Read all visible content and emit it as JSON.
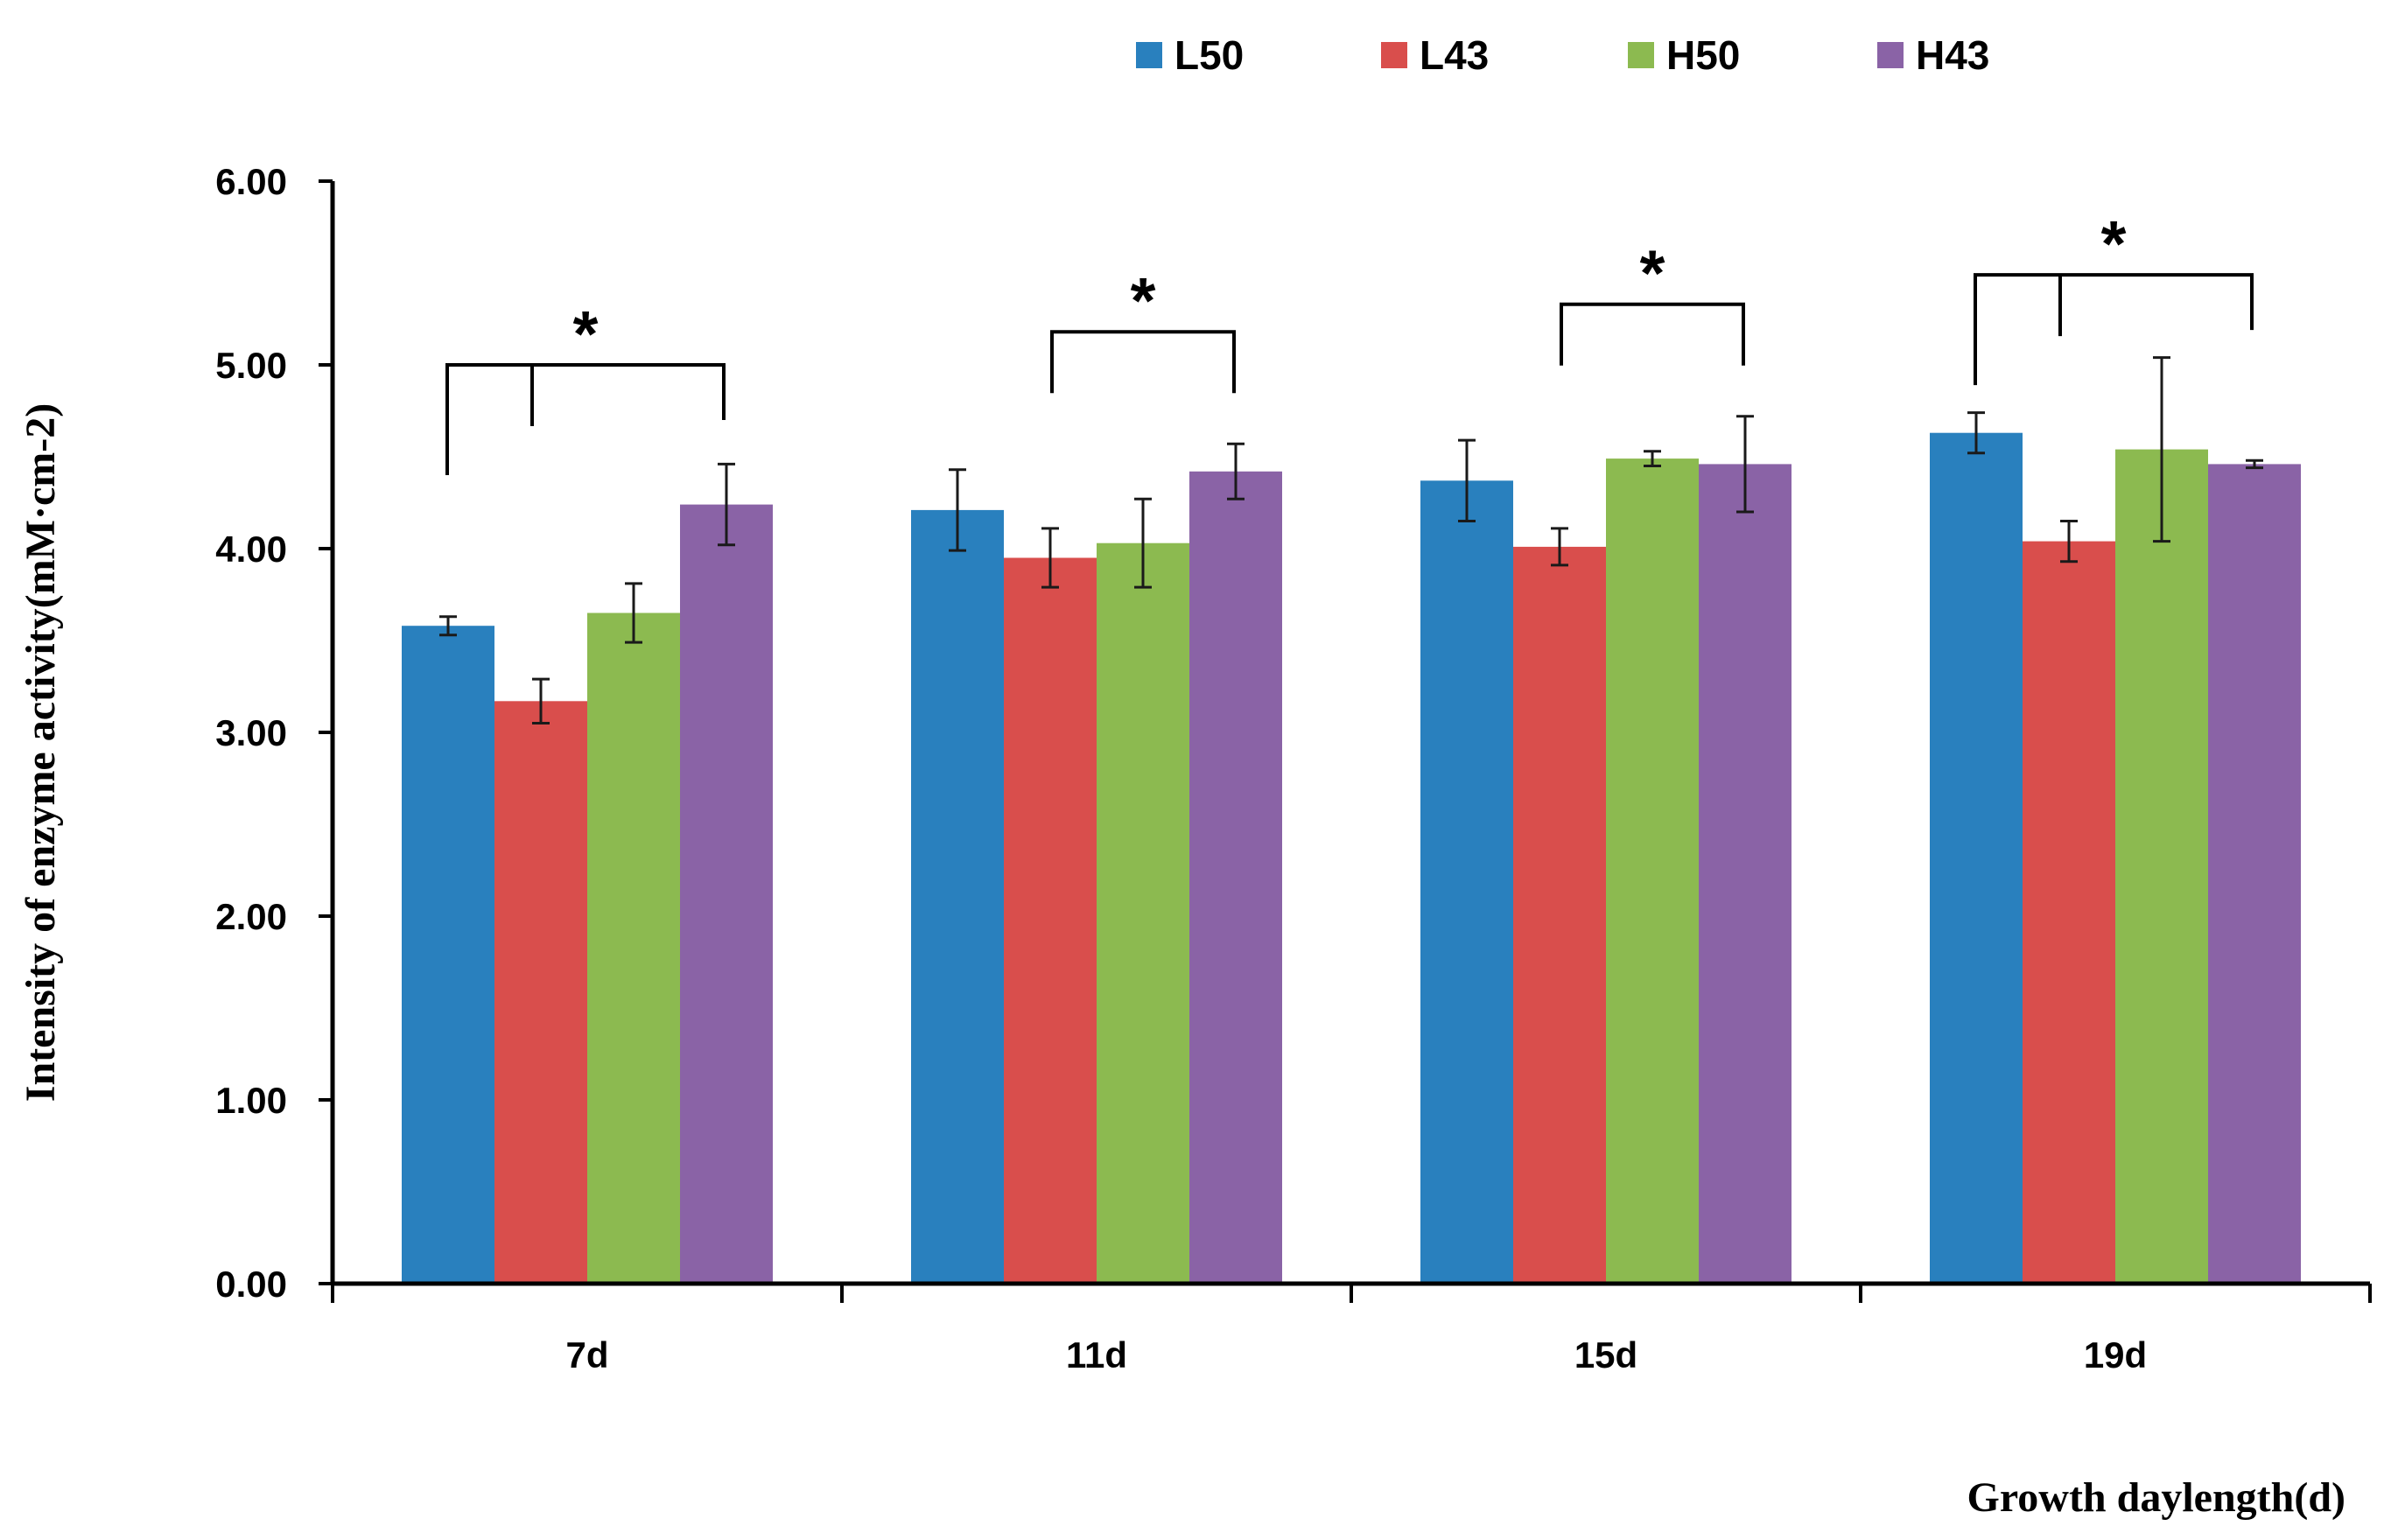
{
  "chart_data": {
    "type": "bar",
    "title": "",
    "xlabel": "Growth daylength(d)",
    "ylabel": "Intensity of enzyme activity(mM·cm-2)",
    "ylim": [
      0,
      6
    ],
    "yticks": [
      "0.00",
      "1.00",
      "2.00",
      "3.00",
      "4.00",
      "5.00",
      "6.00"
    ],
    "categories": [
      "7d",
      "11d",
      "15d",
      "19d"
    ],
    "legend_position": "top-center",
    "series": [
      {
        "name": "L50",
        "color": "#2980BE",
        "values": [
          3.58,
          4.21,
          4.37,
          4.63
        ],
        "errors": [
          0.05,
          0.22,
          0.22,
          0.11
        ]
      },
      {
        "name": "L43",
        "color": "#D94E4C",
        "values": [
          3.17,
          3.95,
          4.01,
          4.04
        ],
        "errors": [
          0.12,
          0.16,
          0.1,
          0.11
        ]
      },
      {
        "name": "H50",
        "color": "#8CBA50",
        "values": [
          3.65,
          4.03,
          4.49,
          4.54
        ],
        "errors": [
          0.16,
          0.24,
          0.04,
          0.5
        ]
      },
      {
        "name": "H43",
        "color": "#8A63A6",
        "values": [
          4.24,
          4.42,
          4.46,
          4.46
        ],
        "errors": [
          0.22,
          0.15,
          0.26,
          0.02
        ]
      }
    ],
    "annotations": [
      {
        "category": "7d",
        "text": "*",
        "bracket_level": 5.0,
        "middle_tick": true
      },
      {
        "category": "11d",
        "text": "*",
        "bracket_level": 5.18,
        "middle_tick": false
      },
      {
        "category": "15d",
        "text": "*",
        "bracket_level": 5.33,
        "middle_tick": false
      },
      {
        "category": "19d",
        "text": "*",
        "bracket_level": 5.49,
        "middle_tick": true
      }
    ]
  }
}
